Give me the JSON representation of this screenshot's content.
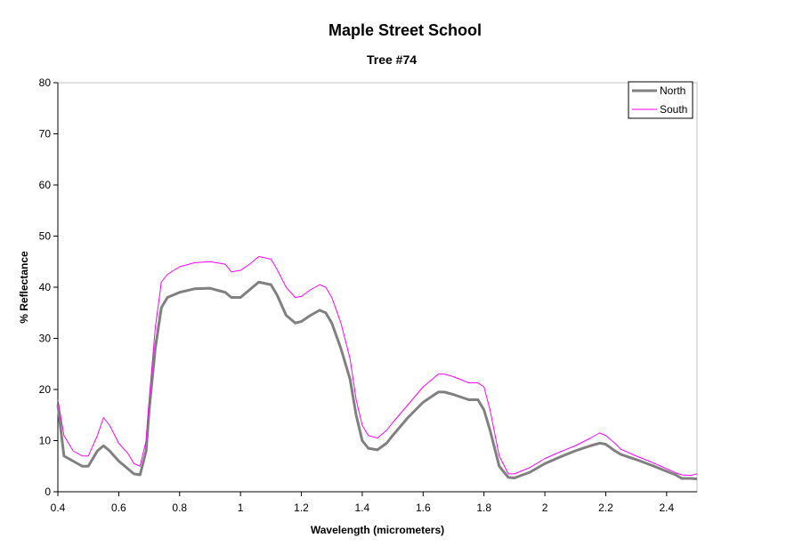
{
  "chart_data": {
    "type": "line",
    "title": "Maple Street School",
    "subtitle": "Tree #74",
    "x_label": "Wavelength (micrometers)",
    "y_label": "% Reflectance",
    "x": [
      0.4,
      0.42,
      0.45,
      0.48,
      0.5,
      0.53,
      0.55,
      0.57,
      0.6,
      0.63,
      0.65,
      0.67,
      0.69,
      0.7,
      0.72,
      0.74,
      0.76,
      0.8,
      0.85,
      0.9,
      0.95,
      0.97,
      1.0,
      1.03,
      1.06,
      1.1,
      1.12,
      1.15,
      1.18,
      1.2,
      1.23,
      1.26,
      1.28,
      1.3,
      1.33,
      1.36,
      1.38,
      1.4,
      1.42,
      1.45,
      1.48,
      1.5,
      1.55,
      1.6,
      1.65,
      1.67,
      1.7,
      1.75,
      1.78,
      1.8,
      1.82,
      1.85,
      1.88,
      1.9,
      1.95,
      2.0,
      2.05,
      2.1,
      2.15,
      2.18,
      2.2,
      2.23,
      2.25,
      2.3,
      2.35,
      2.4,
      2.43,
      2.45,
      2.48,
      2.5
    ],
    "series": [
      {
        "name": "North",
        "color": "#808080",
        "values": [
          17,
          7,
          6,
          5,
          5,
          8,
          9,
          8,
          6,
          4.5,
          3.5,
          3.3,
          8,
          16,
          28,
          36,
          38,
          39,
          39.7,
          39.8,
          39,
          38,
          38,
          39.5,
          41,
          40.5,
          38.5,
          34.5,
          33,
          33.3,
          34.5,
          35.5,
          35,
          33,
          28,
          22,
          15,
          10,
          8.5,
          8.2,
          9.5,
          11,
          14.5,
          17.5,
          19.5,
          19.5,
          19,
          18,
          18,
          16,
          12,
          5,
          2.8,
          2.7,
          3.8,
          5.5,
          6.8,
          8,
          9,
          9.5,
          9.3,
          8,
          7.3,
          6.3,
          5.2,
          4,
          3.3,
          2.6,
          2.6,
          2.5
        ]
      },
      {
        "name": "South",
        "color": "#ff00ff",
        "values": [
          18,
          11,
          8,
          7,
          7,
          11,
          14.5,
          13,
          9.5,
          7.5,
          5.5,
          5,
          10,
          18,
          32,
          41,
          42.5,
          44,
          44.8,
          45,
          44.5,
          43,
          43.3,
          44.5,
          46,
          45.5,
          43.5,
          40,
          38,
          38.2,
          39.5,
          40.5,
          40,
          38,
          33,
          26,
          18,
          13,
          11,
          10.5,
          12,
          13.5,
          17,
          20.5,
          23,
          23,
          22.5,
          21.3,
          21.3,
          20.5,
          16,
          7,
          3.5,
          3.5,
          4.7,
          6.5,
          7.8,
          9,
          10.5,
          11.5,
          11,
          9.5,
          8.3,
          7,
          5.8,
          4.5,
          3.7,
          3.3,
          3.2,
          3.5
        ]
      }
    ],
    "xlim": [
      0.4,
      2.5
    ],
    "ylim": [
      0,
      80
    ],
    "xticks": [
      0.4,
      0.6,
      0.8,
      1,
      1.2,
      1.4,
      1.6,
      1.8,
      2,
      2.2,
      2.4
    ],
    "yticks": [
      0,
      10,
      20,
      30,
      40,
      50,
      60,
      70,
      80
    ],
    "legend": "upper right"
  }
}
